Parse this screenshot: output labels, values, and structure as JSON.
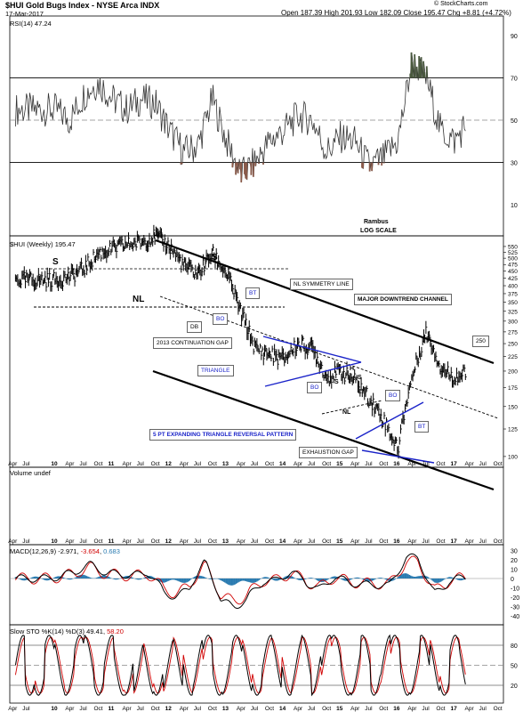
{
  "header": {
    "title": "$HUI Gold Bugs Index - NYSE Arca INDX",
    "date": "17-Mar-2017",
    "ohlc": "Open 187.39  High 201.93  Low 182.09  Close 195.47  Chg +8.81 (+4.72%)",
    "brand": "© StockCharts.com"
  },
  "colors": {
    "price_bar": "#000000",
    "rsi_line": "#333333",
    "rsi_fill_over": "#4a5a3f",
    "rsi_fill_under": "#8a5a4a",
    "macd_hist": "#2a7bb0",
    "signal": "#d00000",
    "pattern_blue": "#1a23c9"
  },
  "rsi_panel": {
    "label": "RSI(14) 47.24",
    "ticks": [
      "90",
      "70",
      "50",
      "30",
      "10"
    ],
    "note_line1": "Rambus",
    "note_line2": "LOG SCALE"
  },
  "price_panel": {
    "label": "$HUI (Weekly) 195.47",
    "ticks": [
      "550",
      "525",
      "500",
      "475",
      "450",
      "425",
      "400",
      "375",
      "350",
      "325",
      "300",
      "275",
      "250",
      "225",
      "200",
      "175",
      "150",
      "125",
      "100"
    ],
    "x_labels": [
      "Apr",
      "Jul",
      "10",
      "Apr",
      "Jul",
      "Oct",
      "11",
      "Apr",
      "Jul",
      "Oct",
      "12",
      "Apr",
      "Jul",
      "Oct",
      "13",
      "Apr",
      "Jul",
      "Oct",
      "14",
      "Apr",
      "Jul",
      "Oct",
      "15",
      "Apr",
      "Jul",
      "Oct",
      "16",
      "Apr",
      "Jul",
      "Oct",
      "17",
      "Apr",
      "Jul",
      "Oct"
    ],
    "annotations": {
      "h_top": "H",
      "s_left": "S",
      "s_right": "S",
      "nl": "NL",
      "db": "DB",
      "bo1": "BO",
      "bt1": "BT",
      "nl_symmetry": "NL SYMMETRY LINE",
      "major_channel": "MAJOR DOWNTREND CHANNEL",
      "continuation_gap": "2013 CONTINUATION  GAP",
      "triangle": "TRIANGLE",
      "bo2": "BO",
      "s_small1": "S",
      "s_small2": "S",
      "h_small": "H",
      "nl_small": "NL",
      "bo3": "BO",
      "bt3": "BT",
      "expanding_triangle": "5 PT EXPANDING TRIANGLE REVERSAL PATTERN",
      "exhaustion_gap": "EXHAUSTION GAP",
      "target_250": "250"
    }
  },
  "volume_panel": {
    "label": "Volume undef"
  },
  "macd_panel": {
    "label_prefix": "MACD(12,26,9)",
    "v1": "-2.971",
    "v2": "-3.654",
    "v3": "0.683",
    "ticks": [
      "30",
      "20",
      "10",
      "0",
      "-10",
      "-20",
      "-30",
      "-40"
    ]
  },
  "sto_panel": {
    "label_prefix": "Slow STO %K(14) %D(3)",
    "v1": "49.41",
    "v2": "58.20",
    "ticks": [
      "80",
      "50",
      "20"
    ]
  },
  "chart_data": {
    "type": "line",
    "title": "$HUI Gold Bugs Index - NYSE Arca INDX (Weekly)",
    "x": [
      "2010-01",
      "2010-04",
      "2010-07",
      "2010-10",
      "2011-01",
      "2011-04",
      "2011-07",
      "2011-10",
      "2012-01",
      "2012-04",
      "2012-07",
      "2012-10",
      "2013-01",
      "2013-04",
      "2013-07",
      "2013-10",
      "2014-01",
      "2014-04",
      "2014-07",
      "2014-10",
      "2015-01",
      "2015-04",
      "2015-07",
      "2015-10",
      "2016-01",
      "2016-04",
      "2016-07",
      "2016-10",
      "2017-01",
      "2017-03"
    ],
    "series": [
      {
        "name": "$HUI (Weekly)",
        "values": [
          420,
          430,
          460,
          520,
          540,
          560,
          570,
          600,
          550,
          470,
          440,
          520,
          440,
          320,
          240,
          230,
          220,
          250,
          240,
          190,
          200,
          185,
          160,
          135,
          105,
          190,
          275,
          205,
          190,
          195
        ]
      },
      {
        "name": "RSI(14)",
        "values": [
          55,
          50,
          62,
          68,
          60,
          55,
          60,
          58,
          45,
          35,
          38,
          60,
          40,
          24,
          30,
          40,
          45,
          52,
          50,
          35,
          42,
          40,
          28,
          32,
          40,
          78,
          70,
          45,
          40,
          47
        ]
      }
    ],
    "y_scale": "log",
    "ylim": [
      100,
      600
    ]
  }
}
